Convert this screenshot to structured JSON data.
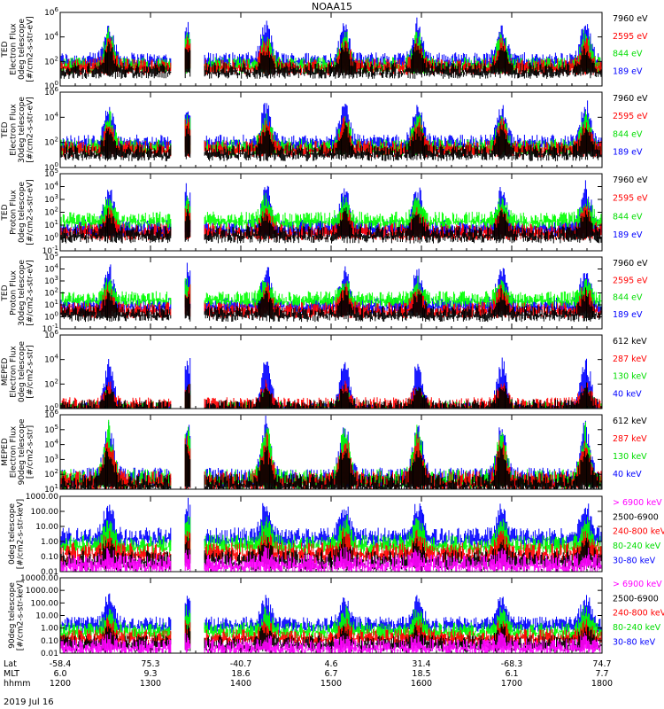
{
  "title": "NOAA15",
  "date_label": "2019 Jul 16",
  "bottom_axis": {
    "row_labels": [
      "Lat",
      "MLT",
      "hhmm"
    ],
    "ticks": [
      {
        "lat": "-58.4",
        "mlt": "6.0",
        "hhmm": "1200"
      },
      {
        "lat": "75.3",
        "mlt": "9.3",
        "hhmm": "1300"
      },
      {
        "lat": "-40.7",
        "mlt": "18.6",
        "hhmm": "1400"
      },
      {
        "lat": "4.6",
        "mlt": "6.7",
        "hhmm": "1500"
      },
      {
        "lat": "31.4",
        "mlt": "18.5",
        "hhmm": "1600"
      },
      {
        "lat": "-68.3",
        "mlt": "6.1",
        "hhmm": "1700"
      },
      {
        "lat": "74.7",
        "mlt": "7.7",
        "hhmm": "1800"
      }
    ]
  },
  "colors": {
    "black": "#000000",
    "red": "#ff0000",
    "green": "#00ff00",
    "blue": "#0000ff",
    "magenta": "#ff00ff"
  },
  "chart_data": [
    {
      "type": "line",
      "ylabel_lines": [
        "TED",
        "Electron Flux",
        "0deg telescope",
        "[#/cm2-s-str-eV]"
      ],
      "yscale": "log",
      "ylim": [
        1,
        1000000
      ],
      "ytick_labels": [
        "10^0",
        "10^2",
        "10^4",
        "10^6"
      ],
      "series": [
        {
          "name": "7960 eV",
          "color": "#000000",
          "baseline": 30,
          "peak": 2000
        },
        {
          "name": "2595 eV",
          "color": "#ff0000",
          "baseline": 60,
          "peak": 5000
        },
        {
          "name": "844 eV",
          "color": "#00ff00",
          "baseline": 80,
          "peak": 20000
        },
        {
          "name": "189 eV",
          "color": "#0000ff",
          "baseline": 200,
          "peak": 100000
        }
      ]
    },
    {
      "type": "line",
      "ylabel_lines": [
        "TED",
        "Electron Flux",
        "30deg telescope",
        "[#/cm2-s-str-eV]"
      ],
      "yscale": "log",
      "ylim": [
        1,
        1000000
      ],
      "ytick_labels": [
        "10^0",
        "10^2",
        "10^4",
        "10^6"
      ],
      "series": [
        {
          "name": "7960 eV",
          "color": "#000000",
          "baseline": 25,
          "peak": 1500
        },
        {
          "name": "2595 eV",
          "color": "#ff0000",
          "baseline": 50,
          "peak": 4000
        },
        {
          "name": "844 eV",
          "color": "#00ff00",
          "baseline": 70,
          "peak": 15000
        },
        {
          "name": "189 eV",
          "color": "#0000ff",
          "baseline": 150,
          "peak": 100000
        }
      ]
    },
    {
      "type": "line",
      "ylabel_lines": [
        "TED",
        "Proton Flux",
        "0deg telescope",
        "[#/cm2-s-str-eV]"
      ],
      "yscale": "log",
      "ylim": [
        0.1,
        100000
      ],
      "ytick_labels": [
        "10^-1",
        "10^0",
        "10^1",
        "10^2",
        "10^3",
        "10^4",
        "10^5"
      ],
      "series": [
        {
          "name": "7960 eV",
          "color": "#000000",
          "baseline": 3,
          "peak": 100
        },
        {
          "name": "2595 eV",
          "color": "#ff0000",
          "baseline": 5,
          "peak": 200
        },
        {
          "name": "844 eV",
          "color": "#00ff00",
          "baseline": 40,
          "peak": 1000
        },
        {
          "name": "189 eV",
          "color": "#0000ff",
          "baseline": 10,
          "peak": 10000
        }
      ]
    },
    {
      "type": "line",
      "ylabel_lines": [
        "TED",
        "Proton Flux",
        "30deg telescope",
        "[#/cm2-s-str-eV]"
      ],
      "yscale": "log",
      "ylim": [
        0.1,
        100000
      ],
      "ytick_labels": [
        "10^-1",
        "10^0",
        "10^1",
        "10^2",
        "10^3",
        "10^4",
        "10^5"
      ],
      "series": [
        {
          "name": "7960 eV",
          "color": "#000000",
          "baseline": 3,
          "peak": 100
        },
        {
          "name": "2595 eV",
          "color": "#ff0000",
          "baseline": 6,
          "peak": 300
        },
        {
          "name": "844 eV",
          "color": "#00ff00",
          "baseline": 50,
          "peak": 1000
        },
        {
          "name": "189 eV",
          "color": "#0000ff",
          "baseline": 15,
          "peak": 10000
        }
      ]
    },
    {
      "type": "line",
      "ylabel_lines": [
        "MEPED",
        "Electron Flux",
        "0deg telescope",
        "[#/cm2-s-str]"
      ],
      "yscale": "log",
      "ylim": [
        1,
        1000000
      ],
      "ytick_labels": [
        "10^0",
        "10^2",
        "10^4",
        "10^6"
      ],
      "series": [
        {
          "name": "612 keV",
          "color": "#000000",
          "baseline": 2,
          "peak": 50
        },
        {
          "name": "287 keV",
          "color": "#ff0000",
          "baseline": 3,
          "peak": 80
        },
        {
          "name": "130 keV",
          "color": "#00ff00",
          "baseline": 1.5,
          "peak": 20
        },
        {
          "name": "40 keV",
          "color": "#0000ff",
          "baseline": 1.2,
          "peak": 10000
        }
      ]
    },
    {
      "type": "line",
      "ylabel_lines": [
        "MEPED",
        "Electron Flux",
        "90deg telescope",
        "[#/cm2-s-str]"
      ],
      "yscale": "log",
      "ylim": [
        10,
        1000000
      ],
      "ytick_labels": [
        "10^1",
        "10^2",
        "10^3",
        "10^4",
        "10^5",
        "10^6"
      ],
      "series": [
        {
          "name": "612 keV",
          "color": "#000000",
          "baseline": 40,
          "peak": 5000
        },
        {
          "name": "287 keV",
          "color": "#ff0000",
          "baseline": 60,
          "peak": 20000
        },
        {
          "name": "130 keV",
          "color": "#00ff00",
          "baseline": 80,
          "peak": 100000
        },
        {
          "name": "40 keV",
          "color": "#0000ff",
          "baseline": 100,
          "peak": 200000
        }
      ]
    },
    {
      "type": "line",
      "ylabel_lines": [
        "0deg telescope",
        "[#/cm2-s-str-keV]"
      ],
      "yscale": "log",
      "ylim": [
        0.01,
        1000
      ],
      "ytick_labels": [
        "0.01",
        "0.10",
        "1.00",
        "10.00",
        "100.00",
        "1000.00"
      ],
      "series": [
        {
          "name": "> 6900 keV",
          "color": "#ff00ff",
          "baseline": 0.05,
          "peak": 0.2
        },
        {
          "name": "2500-6900",
          "color": "#000000",
          "baseline": 0.1,
          "peak": 1
        },
        {
          "name": "240-800 keV",
          "color": "#ff0000",
          "baseline": 0.3,
          "peak": 3
        },
        {
          "name": "80-240 keV",
          "color": "#00ff00",
          "baseline": 1,
          "peak": 30
        },
        {
          "name": "30-80 keV",
          "color": "#0000ff",
          "baseline": 3,
          "peak": 300
        }
      ]
    },
    {
      "type": "line",
      "ylabel_lines": [
        "90deg telescope",
        "[#/cm2-s-str-keV]"
      ],
      "yscale": "log",
      "ylim": [
        0.01,
        10000
      ],
      "ytick_labels": [
        "0.01",
        "0.10",
        "1.00",
        "10.00",
        "100.00",
        "1000.00",
        "10000.00"
      ],
      "series": [
        {
          "name": "> 6900 keV",
          "color": "#ff00ff",
          "baseline": 0.05,
          "peak": 0.2
        },
        {
          "name": "2500-6900",
          "color": "#000000",
          "baseline": 0.1,
          "peak": 1
        },
        {
          "name": "240-800 keV",
          "color": "#ff0000",
          "baseline": 0.3,
          "peak": 3
        },
        {
          "name": "80-240 keV",
          "color": "#00ff00",
          "baseline": 1,
          "peak": 30
        },
        {
          "name": "30-80 keV",
          "color": "#0000ff",
          "baseline": 3,
          "peak": 300
        }
      ]
    }
  ]
}
